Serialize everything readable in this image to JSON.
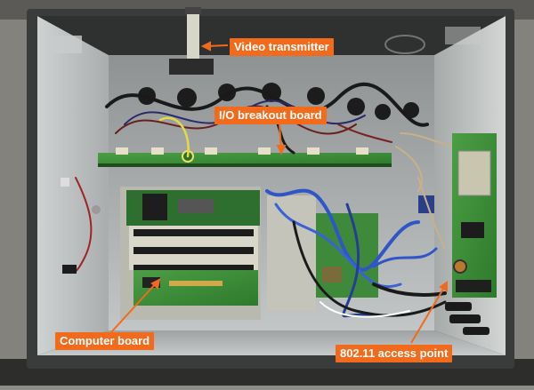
{
  "labels": {
    "video_transmitter": "Video transmitter",
    "io_breakout_board": "I/O breakout board",
    "computer_board": "Computer board",
    "access_point": "802.11 access point"
  },
  "colors": {
    "label_background": "#f26a1b",
    "label_text": "#ffffff",
    "enclosure_metal": "#b9bcbc",
    "pcb_green": "#3f8f3a"
  }
}
